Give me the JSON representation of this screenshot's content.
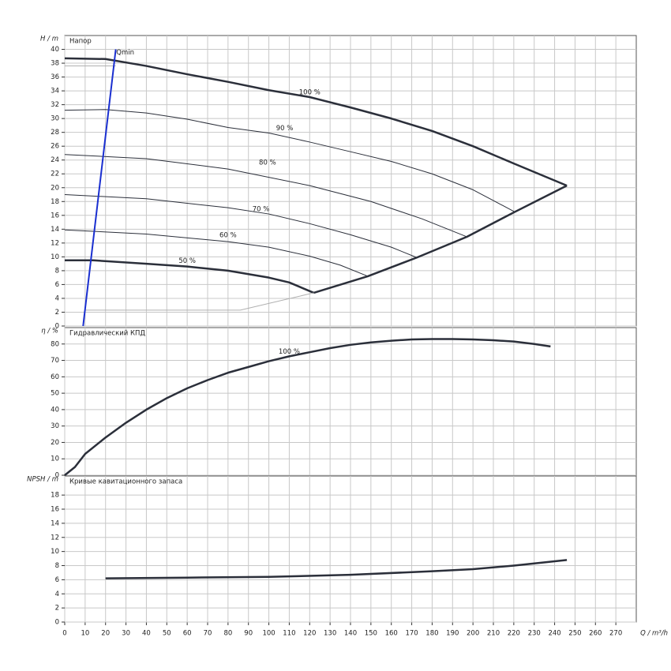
{
  "chart_data": [
    {
      "type": "line",
      "title": "Напор",
      "ylabel": "H / m",
      "ylim": [
        0,
        42
      ],
      "yticks": [
        0,
        2,
        4,
        6,
        8,
        10,
        12,
        14,
        16,
        18,
        20,
        22,
        24,
        26,
        28,
        30,
        32,
        34,
        36,
        38,
        40
      ],
      "grid": true,
      "series": [
        {
          "name": "100 %",
          "color": "#2b2f3a",
          "linewidth": 2.5,
          "x": [
            0,
            20,
            40,
            60,
            80,
            100,
            120,
            140,
            160,
            180,
            200,
            220,
            246
          ],
          "values": [
            38.7,
            38.6,
            37.6,
            36.4,
            35.3,
            34.1,
            33.1,
            31.6,
            30,
            28.2,
            26,
            23.5,
            20.3
          ]
        },
        {
          "name": "90 %",
          "color": "#2b2f3a",
          "linewidth": 1,
          "x": [
            0,
            20,
            40,
            60,
            80,
            100,
            120,
            140,
            160,
            180,
            200,
            220.5
          ],
          "values": [
            31.2,
            31.3,
            30.8,
            29.9,
            28.7,
            27.9,
            26.6,
            25.2,
            23.8,
            22,
            19.7,
            16.5
          ]
        },
        {
          "name": "80 %",
          "color": "#2b2f3a",
          "linewidth": 1,
          "x": [
            0,
            40,
            80,
            120,
            150,
            175,
            197
          ],
          "values": [
            24.8,
            24.2,
            22.7,
            20.3,
            18,
            15.5,
            12.9
          ]
        },
        {
          "name": "70 %",
          "color": "#2b2f3a",
          "linewidth": 1,
          "x": [
            0,
            40,
            80,
            100,
            120,
            140,
            160,
            172.5
          ],
          "values": [
            19,
            18.4,
            17.1,
            16.2,
            14.8,
            13.2,
            11.4,
            9.9
          ]
        },
        {
          "name": "60 %",
          "color": "#2b2f3a",
          "linewidth": 1,
          "x": [
            0,
            40,
            80,
            100,
            120,
            135,
            148.5
          ],
          "values": [
            13.9,
            13.3,
            12.2,
            11.4,
            10.1,
            8.8,
            7.2
          ]
        },
        {
          "name": "50 %",
          "color": "#2b2f3a",
          "linewidth": 2.5,
          "x": [
            0,
            14,
            40,
            60,
            80,
            100,
            110,
            122
          ],
          "values": [
            9.5,
            9.5,
            9,
            8.6,
            8,
            7,
            6.3,
            4.8
          ]
        },
        {
          "color": "#2b2f3a",
          "linewidth": 2.5,
          "x": [
            122,
            148.5,
            172.5,
            197,
            220.5,
            246
          ],
          "values": [
            4.8,
            7.2,
            9.9,
            12.9,
            16.5,
            20.3
          ]
        },
        {
          "color": "#b0b0b0",
          "linewidth": 1,
          "x": [
            0,
            25
          ],
          "values": [
            37.6,
            37.6
          ]
        },
        {
          "color": "#b0b0b0",
          "linewidth": 1,
          "x": [
            10,
            86,
            122
          ],
          "values": [
            2.3,
            2.3,
            4.8
          ]
        },
        {
          "name": "Qmin",
          "color": "#1a2fd0",
          "linewidth": 2,
          "x": [
            9,
            25
          ],
          "values": [
            0,
            40
          ]
        }
      ]
    },
    {
      "type": "line",
      "title": "Гидравлический КПД",
      "ylabel": "η / %",
      "ylim": [
        0,
        90
      ],
      "yticks": [
        0,
        10,
        20,
        30,
        40,
        50,
        60,
        70,
        80
      ],
      "grid": true,
      "series": [
        {
          "name": "100 %",
          "color": "#2b2f3a",
          "linewidth": 2.5,
          "x": [
            0,
            5,
            10,
            20,
            30,
            40,
            50,
            60,
            70,
            80,
            90,
            100,
            110,
            120,
            130,
            140,
            150,
            160,
            170,
            180,
            190,
            200,
            210,
            220,
            230,
            238
          ],
          "values": [
            0,
            5,
            13,
            23,
            32,
            40,
            47,
            53,
            58,
            62.5,
            66,
            69.5,
            72.5,
            75,
            77.5,
            79.5,
            81,
            82,
            82.8,
            83,
            83,
            82.8,
            82.3,
            81.5,
            80,
            78.5
          ]
        }
      ]
    },
    {
      "type": "line",
      "title": "Кривые кавитационного запаса",
      "ylabel": "NPSH / m",
      "xlabel": "Q / m³/h",
      "ylim": [
        0,
        20.7
      ],
      "yticks": [
        0,
        2,
        4,
        6,
        8,
        10,
        12,
        14,
        16,
        18
      ],
      "xlim": [
        0,
        280
      ],
      "xticks": [
        0,
        10,
        20,
        30,
        40,
        50,
        60,
        70,
        80,
        90,
        100,
        110,
        120,
        130,
        140,
        150,
        160,
        170,
        180,
        190,
        200,
        210,
        220,
        230,
        240,
        250,
        260,
        270
      ],
      "grid": true,
      "series": [
        {
          "color": "#2b2f3a",
          "linewidth": 2.5,
          "x": [
            20,
            60,
            100,
            140,
            180,
            200,
            220,
            246
          ],
          "values": [
            6.2,
            6.3,
            6.4,
            6.7,
            7.2,
            7.5,
            8,
            8.8
          ]
        }
      ]
    }
  ]
}
